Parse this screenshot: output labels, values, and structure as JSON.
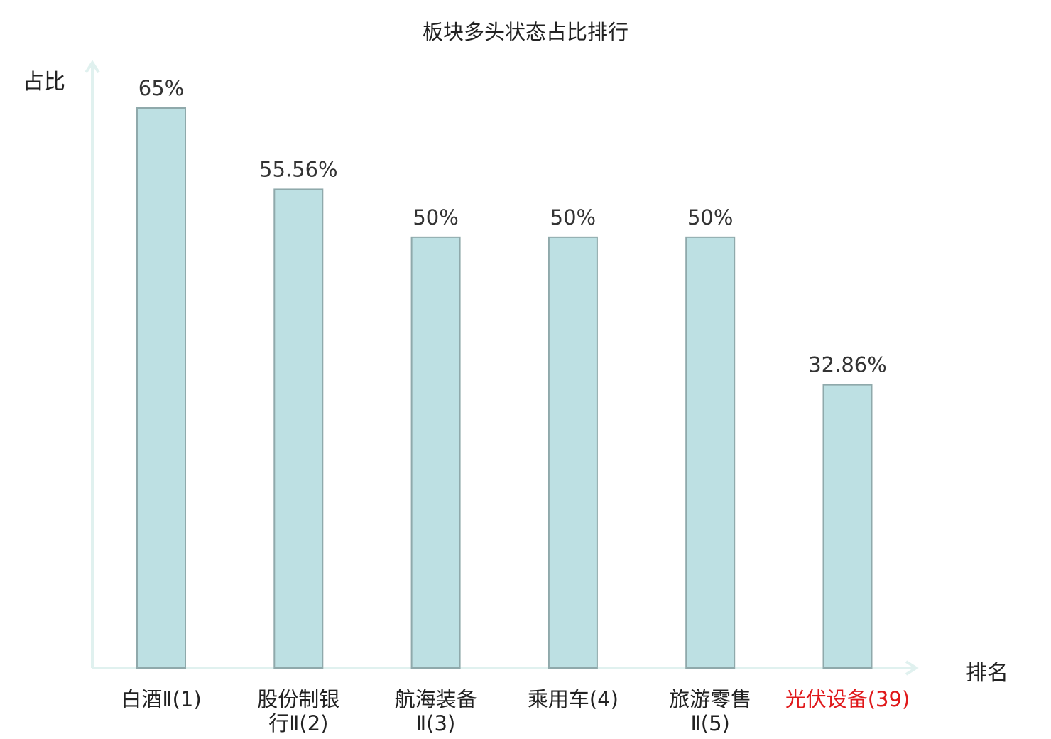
{
  "chart_data": {
    "type": "bar",
    "title": "板块多头状态占比排行",
    "ylabel": "占比",
    "xlabel": "排名",
    "categories": [
      [
        "白酒Ⅱ(1)"
      ],
      [
        "股份制银",
        "行Ⅱ(2)"
      ],
      [
        "航海装备",
        "Ⅱ(3)"
      ],
      [
        "乘用车(4)"
      ],
      [
        "旅游零售",
        "Ⅱ(5)"
      ],
      [
        "光伏设备(39)"
      ]
    ],
    "values": [
      65,
      55.56,
      50,
      50,
      50,
      32.86
    ],
    "value_labels": [
      "65%",
      "55.56%",
      "50%",
      "50%",
      "50%",
      "32.86%"
    ],
    "highlight_index": 5,
    "ylim": [
      0,
      70
    ],
    "grid": false
  },
  "colors": {
    "bar_fill": "#bde0e3",
    "bar_stroke": "#8fa9ab",
    "axis": "#e0f1ef",
    "text": "#222222",
    "value_text": "#333333",
    "highlight_text": "#e0191b"
  }
}
